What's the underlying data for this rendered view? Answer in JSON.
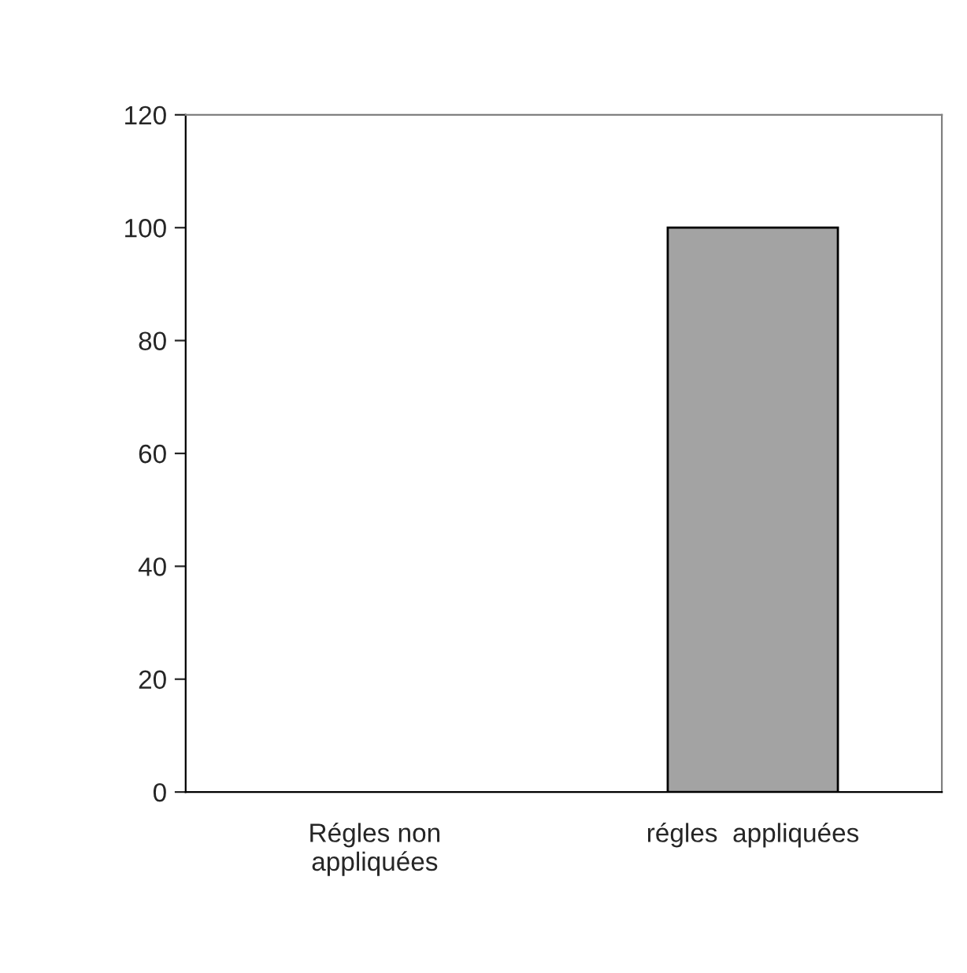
{
  "chart_data": {
    "type": "bar",
    "categories": [
      "Régles non\nappliquées",
      "régles  appliquées"
    ],
    "values": [
      0,
      100
    ],
    "color": "#a3a3a3",
    "ylim": [
      0,
      120
    ],
    "yticks": [
      0,
      20,
      40,
      60,
      80,
      100,
      120
    ],
    "grid": false,
    "legend": false
  }
}
